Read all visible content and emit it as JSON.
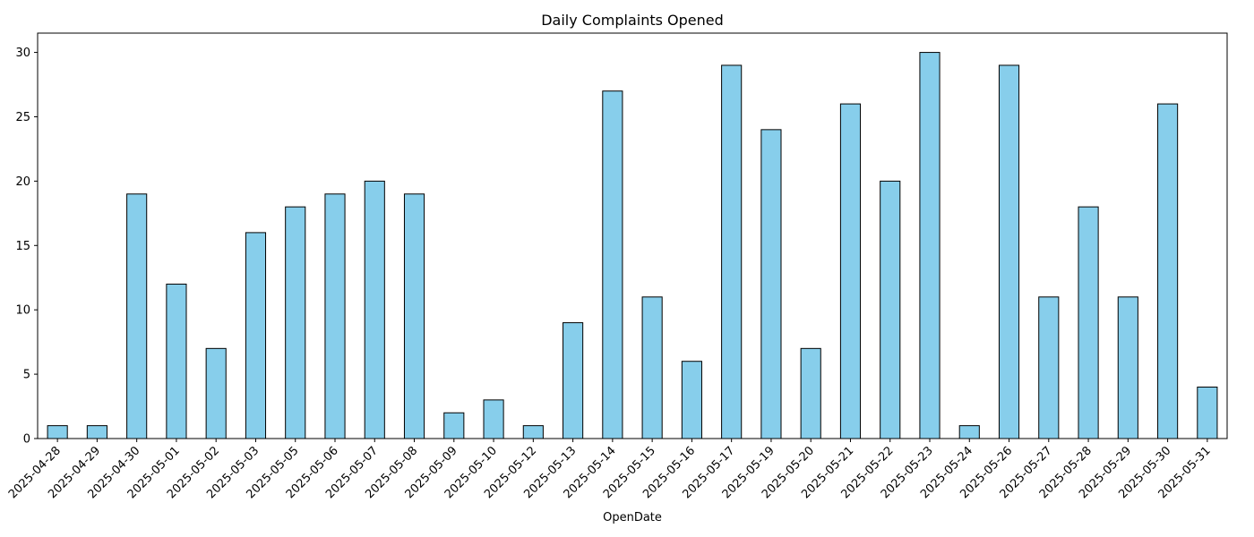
{
  "chart_data": {
    "type": "bar",
    "title": "Daily Complaints Opened",
    "xlabel": "OpenDate",
    "ylabel": "",
    "ylim": [
      0,
      31.5
    ],
    "yticks": [
      0,
      5,
      10,
      15,
      20,
      25,
      30
    ],
    "grid": false,
    "bar_color": "#87CEEB",
    "edge_color": "#000000",
    "categories": [
      "2025-04-28",
      "2025-04-29",
      "2025-04-30",
      "2025-05-01",
      "2025-05-02",
      "2025-05-03",
      "2025-05-05",
      "2025-05-06",
      "2025-05-07",
      "2025-05-08",
      "2025-05-09",
      "2025-05-10",
      "2025-05-12",
      "2025-05-13",
      "2025-05-14",
      "2025-05-15",
      "2025-05-16",
      "2025-05-17",
      "2025-05-19",
      "2025-05-20",
      "2025-05-21",
      "2025-05-22",
      "2025-05-23",
      "2025-05-24",
      "2025-05-26",
      "2025-05-27",
      "2025-05-28",
      "2025-05-29",
      "2025-05-30",
      "2025-05-31"
    ],
    "values": [
      1,
      1,
      19,
      12,
      7,
      16,
      18,
      19,
      20,
      19,
      2,
      3,
      1,
      9,
      27,
      11,
      6,
      29,
      24,
      7,
      26,
      20,
      30,
      1,
      29,
      11,
      18,
      11,
      26,
      4
    ]
  }
}
